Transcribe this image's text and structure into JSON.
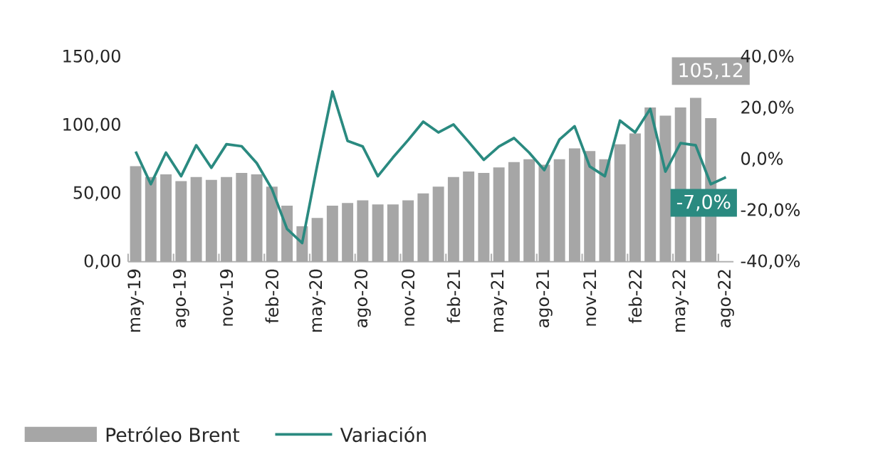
{
  "chart_data": {
    "type": "bar",
    "categories": [
      "may-19",
      null,
      null,
      "ago-19",
      null,
      null,
      "nov-19",
      null,
      null,
      "feb-20",
      null,
      null,
      "may-20",
      null,
      null,
      "ago-20",
      null,
      null,
      "nov-20",
      null,
      null,
      "feb-21",
      null,
      null,
      "may-21",
      null,
      null,
      "ago-21",
      null,
      null,
      "nov-21",
      null,
      null,
      "feb-22",
      null,
      null,
      "may-22",
      null,
      null,
      "ago-22"
    ],
    "series": [
      {
        "name": "Petróleo Brent",
        "color": "#a6a6a6",
        "values": [
          70,
          62,
          64,
          59,
          62,
          60,
          62,
          65,
          64,
          55,
          41,
          26,
          32,
          41,
          43,
          45,
          42,
          42,
          45,
          50,
          55,
          62,
          66,
          65,
          69,
          73,
          75,
          71,
          75,
          83,
          81,
          75,
          86,
          94,
          113,
          107,
          113,
          120,
          105.12,
          null
        ],
        "value_labels": [
          null,
          null,
          null,
          null,
          null,
          null,
          null,
          null,
          null,
          null,
          null,
          null,
          null,
          null,
          null,
          null,
          null,
          null,
          null,
          null,
          null,
          null,
          null,
          null,
          null,
          null,
          null,
          null,
          null,
          null,
          null,
          null,
          null,
          null,
          null,
          null,
          null,
          null,
          "105,12",
          null
        ]
      },
      {
        "name": "Variación",
        "type": "line",
        "axis": "y2",
        "color": "#2a8a80",
        "values": [
          3.0,
          -9.7,
          2.6,
          -6.6,
          5.5,
          -3.3,
          5.9,
          5.1,
          -1.5,
          -11.6,
          -27.2,
          -32.7,
          -2.2,
          26.5,
          7.2,
          5.0,
          -6.6,
          0.7,
          7.5,
          14.7,
          10.5,
          13.6,
          6.8,
          -0.2,
          5.0,
          8.3,
          2.6,
          -4.2,
          7.7,
          12.9,
          -2.8,
          -6.6,
          15.1,
          10.5,
          19.7,
          -4.8,
          6.3,
          5.5,
          -9.7,
          -7.0
        ],
        "value_labels": [
          null,
          null,
          null,
          null,
          null,
          null,
          null,
          null,
          null,
          null,
          null,
          null,
          null,
          null,
          null,
          null,
          null,
          null,
          null,
          null,
          null,
          null,
          null,
          null,
          null,
          null,
          null,
          null,
          null,
          null,
          null,
          null,
          null,
          null,
          null,
          null,
          null,
          null,
          null,
          "-7,0%"
        ]
      }
    ],
    "ylim": [
      0,
      150
    ],
    "yticks": [
      {
        "value": 0,
        "label": "0,00"
      },
      {
        "value": 50,
        "label": "50,00"
      },
      {
        "value": 100,
        "label": "100,00"
      },
      {
        "value": 150,
        "label": "150,00"
      }
    ],
    "y2lim": [
      -40,
      40
    ],
    "y2ticks": [
      {
        "value": -40,
        "label": "-40,0%"
      },
      {
        "value": -20,
        "label": "-20,0%"
      },
      {
        "value": 0,
        "label": "0,0%"
      },
      {
        "value": 20,
        "label": "20,0%"
      },
      {
        "value": 40,
        "label": "40,0%"
      }
    ],
    "legend": "bottom"
  }
}
